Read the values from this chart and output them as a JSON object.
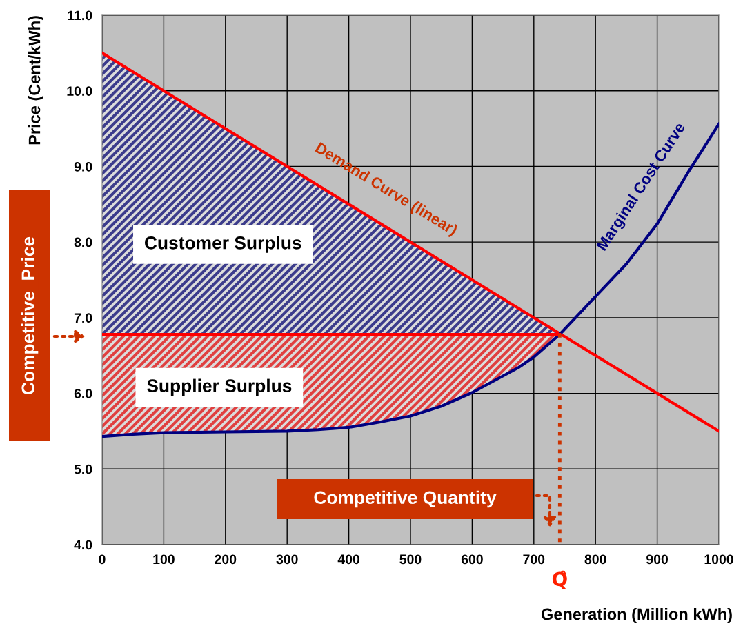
{
  "chart_data": {
    "type": "line",
    "xlabel": "Generation (Million kWh)",
    "ylabel": "Price (Cent/kWh)",
    "xlim": [
      0,
      1000
    ],
    "xticks": [
      0,
      100,
      200,
      300,
      400,
      500,
      600,
      700,
      800,
      900,
      1000
    ],
    "ylim": [
      4,
      11
    ],
    "yticks": [
      {
        "value": 4,
        "label": "4.0"
      },
      {
        "value": 5,
        "label": "5.0"
      },
      {
        "value": 6,
        "label": "6.0"
      },
      {
        "value": 7,
        "label": "7.0"
      },
      {
        "value": 8,
        "label": "8.0"
      },
      {
        "value": 9,
        "label": "9.0"
      },
      {
        "value": 10,
        "label": "10.0"
      },
      {
        "value": 11,
        "label": "11.0"
      }
    ],
    "grid": true,
    "legend": false,
    "series": [
      {
        "name": "Demand Curve (linear)",
        "color": "#ff0000",
        "line_style": "solid",
        "x": [
          0,
          1000
        ],
        "values": [
          10.5,
          5.5
        ]
      },
      {
        "name": "Marginal Cost Curve",
        "color": "#000080",
        "line_style": "solid",
        "x": [
          0,
          50,
          100,
          200,
          300,
          350,
          400,
          450,
          500,
          550,
          600,
          675,
          700,
          742,
          800,
          850,
          900,
          950,
          1000
        ],
        "values": [
          5.43,
          5.46,
          5.48,
          5.49,
          5.5,
          5.52,
          5.55,
          5.62,
          5.7,
          5.83,
          6.01,
          6.34,
          6.48,
          6.78,
          7.28,
          7.71,
          8.24,
          8.92,
          9.56
        ],
        "lower": [
          5.43,
          5.46,
          5.48,
          5.49,
          5.5,
          5.52,
          5.55,
          5.62,
          5.7,
          5.83,
          6.01,
          6.34,
          6.48,
          6.78,
          null,
          null,
          null,
          null,
          null
        ],
        "upper": [
          6.78,
          6.78,
          6.78,
          6.78,
          6.78,
          6.78,
          6.78,
          6.78,
          6.78,
          6.78,
          6.78,
          6.78,
          6.78,
          6.78,
          null,
          null,
          null,
          null,
          null
        ]
      },
      {
        "color": "#ff0000",
        "line_style": "solid",
        "x": [
          0,
          742
        ],
        "values": [
          6.78,
          6.78
        ],
        "lower": [
          6.78,
          6.78
        ],
        "upper": [
          10.5,
          6.79
        ]
      },
      {
        "color": "#cc3300",
        "line_style": "dotted",
        "x": [
          742,
          742
        ],
        "values": [
          6.78,
          4
        ]
      }
    ],
    "annotations": [
      "Competitive  Price",
      "Competitive Quantity",
      {
        "text": "Q̂",
        "x": 742,
        "y": 4
      },
      "Customer Surplus",
      "Supplier Surplus"
    ]
  }
}
